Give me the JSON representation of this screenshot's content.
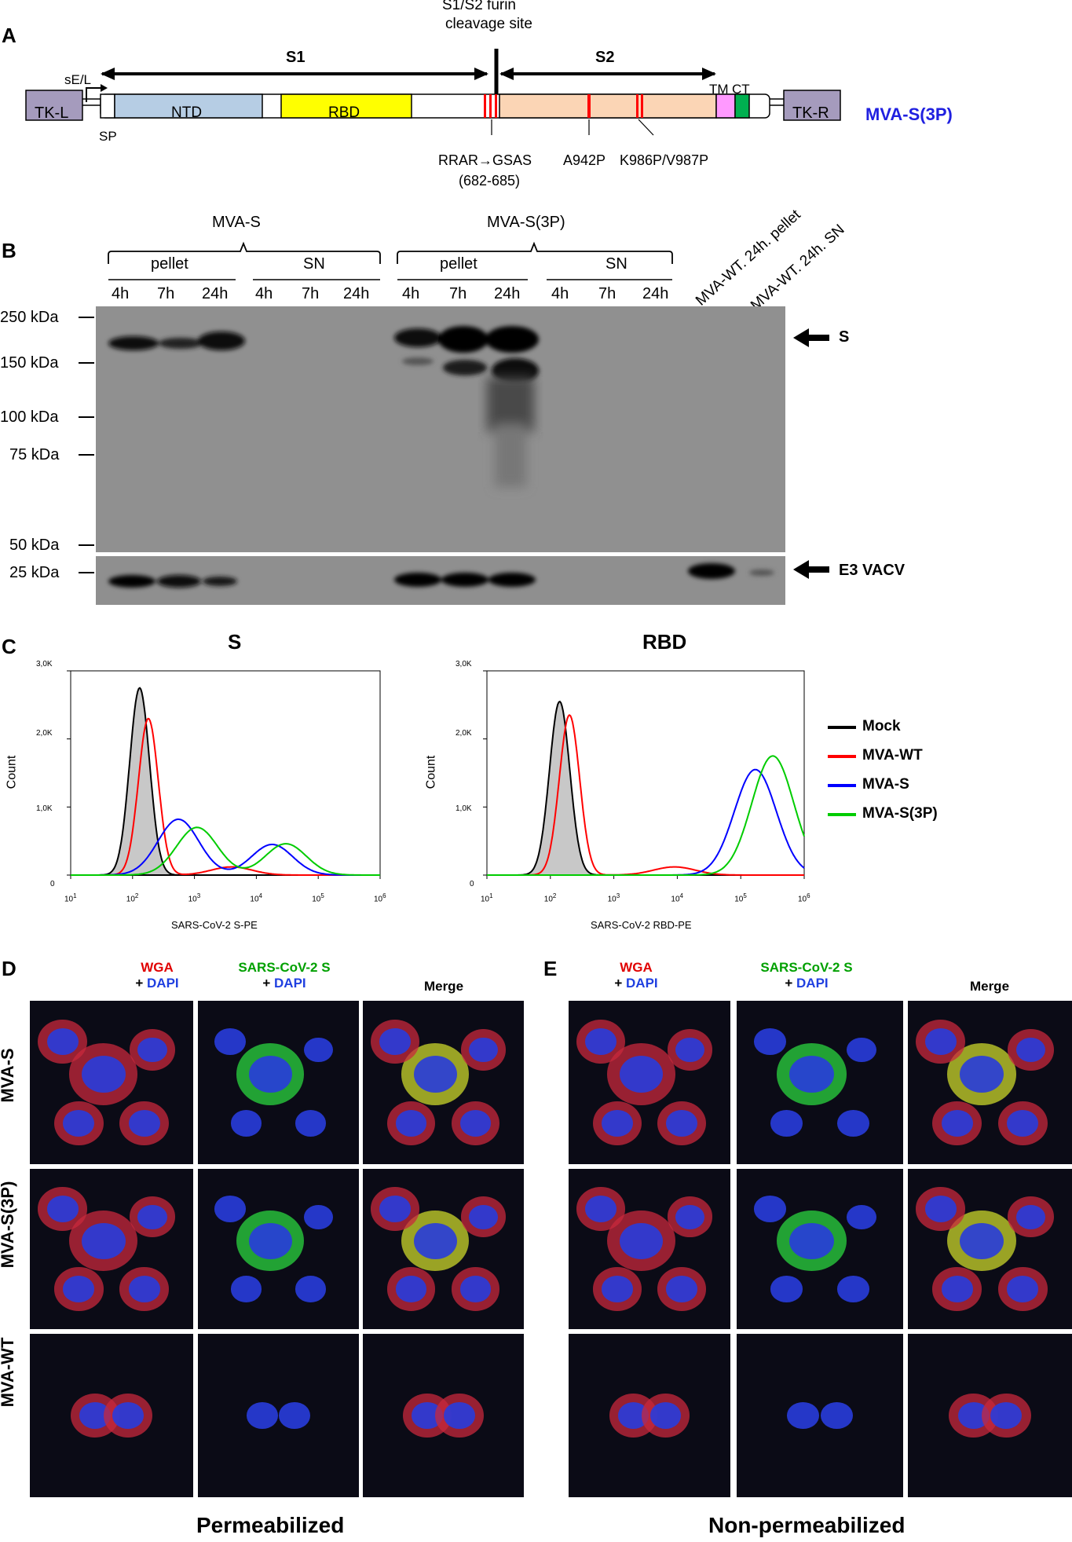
{
  "panels": {
    "a": "A",
    "b": "B",
    "c": "C",
    "d": "D",
    "e": "E"
  },
  "panelA": {
    "cleavage_line1": "S1/S2 furin",
    "cleavage_line2": "cleavage site",
    "s1": "S1",
    "s2": "S2",
    "promoter": "sE/L",
    "tk_left": "TK-L",
    "tk_right": "TK-R",
    "ntd": "NTD",
    "rbd": "RBD",
    "tm": "TM",
    "ct": "CT",
    "sp": "SP",
    "construct": "MVA-S(3P)",
    "mut1_line1": "RRAR→GSAS",
    "mut1_line2": "(682-685)",
    "mut2": "A942P",
    "mut3": "K986P/V987P",
    "colors": {
      "ntd": "#b6cde4",
      "rbd": "#ffff00",
      "s2": "#fbd5b5",
      "tm": "#ff99ff",
      "ct": "#00b050",
      "tk": "#a59bbd",
      "mutation": "#ff0000",
      "construct_label": "#2020e0"
    }
  },
  "panelB": {
    "group1": "MVA-S",
    "group2": "MVA-S(3P)",
    "pellet": "pellet",
    "sn": "SN",
    "times": [
      "4h",
      "7h",
      "24h"
    ],
    "wt1": "MVA-WT. 24h. pellet",
    "wt2": "MVA-WT. 24h. SN",
    "markers": [
      "250 kDa",
      "150 kDa",
      "100 kDa",
      "75 kDa",
      "50 kDa",
      "25 kDa"
    ],
    "band_s": "S",
    "band_e3": "E3 VACV"
  },
  "panelC": {
    "title_s": "S",
    "title_rbd": "RBD",
    "ylabel": "Count",
    "xlabel_s": "SARS-CoV-2 S-PE",
    "xlabel_rbd": "SARS-CoV-2 RBD-PE",
    "yticks": [
      "3,0K",
      "2,0K",
      "1,0K",
      "0"
    ],
    "xticks": [
      "10",
      "10",
      "10",
      "10",
      "10",
      "10"
    ],
    "xexp": [
      "1",
      "2",
      "3",
      "4",
      "5",
      "6"
    ],
    "legend": [
      {
        "name": "Mock",
        "color": "#000000"
      },
      {
        "name": "MVA-WT",
        "color": "#ff0000"
      },
      {
        "name": "MVA-S",
        "color": "#0000ff"
      },
      {
        "name": "MVA-S(3P)",
        "color": "#00cc00"
      }
    ]
  },
  "chart_data": [
    {
      "type": "area",
      "title": "S",
      "xlabel": "SARS-CoV-2 S-PE",
      "ylabel": "Count",
      "x_scale": "log",
      "xlim": [
        10,
        1000000
      ],
      "ylim": [
        0,
        3000
      ],
      "series": [
        {
          "name": "Mock",
          "peaks": [
            {
              "x": 130,
              "y": 2750
            }
          ]
        },
        {
          "name": "MVA-WT",
          "peaks": [
            {
              "x": 180,
              "y": 2300
            },
            {
              "x": 4000,
              "y": 120
            }
          ]
        },
        {
          "name": "MVA-S",
          "peaks": [
            {
              "x": 550,
              "y": 820
            },
            {
              "x": 18000,
              "y": 450
            }
          ]
        },
        {
          "name": "MVA-S(3P)",
          "peaks": [
            {
              "x": 1100,
              "y": 700
            },
            {
              "x": 30000,
              "y": 460
            }
          ]
        }
      ]
    },
    {
      "type": "area",
      "title": "RBD",
      "xlabel": "SARS-CoV-2 RBD-PE",
      "ylabel": "Count",
      "x_scale": "log",
      "xlim": [
        10,
        1000000
      ],
      "ylim": [
        0,
        3000
      ],
      "series": [
        {
          "name": "Mock",
          "peaks": [
            {
              "x": 140,
              "y": 2550
            }
          ]
        },
        {
          "name": "MVA-WT",
          "peaks": [
            {
              "x": 200,
              "y": 2350
            },
            {
              "x": 9000,
              "y": 120
            }
          ]
        },
        {
          "name": "MVA-S",
          "peaks": [
            {
              "x": 170000,
              "y": 1550
            }
          ]
        },
        {
          "name": "MVA-S(3P)",
          "peaks": [
            {
              "x": 320000,
              "y": 1750
            }
          ]
        }
      ]
    }
  ],
  "panelDE": {
    "wga": "WGA",
    "plus": "+",
    "dapi": "DAPI",
    "sarscov2s": "SARS-CoV-2 S",
    "merge": "Merge",
    "rows": [
      "MVA-S",
      "MVA-S(3P)",
      "MVA-WT"
    ],
    "permeabilized": "Permeabilized",
    "nonpermeabilized": "Non-permeabilized"
  }
}
